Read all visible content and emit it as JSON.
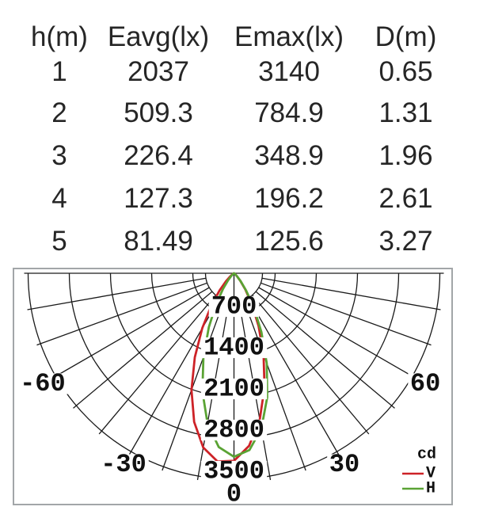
{
  "table": {
    "headers": [
      "h(m)",
      "Eavg(lx)",
      "Emax(lx)",
      "D(m)"
    ],
    "rows": [
      [
        "1",
        "2037",
        "3140",
        "0.65"
      ],
      [
        "2",
        "509.3",
        "784.9",
        "1.31"
      ],
      [
        "3",
        "226.4",
        "348.9",
        "1.96"
      ],
      [
        "4",
        "127.3",
        "196.2",
        "2.61"
      ],
      [
        "5",
        "81.49",
        "125.6",
        "3.27"
      ]
    ]
  },
  "chart_data": {
    "type": "polar",
    "title": "",
    "unit": "cd",
    "r_max": 3500,
    "radial_ticks": [
      "700",
      "1400",
      "2100",
      "2800",
      "3500"
    ],
    "radial_tick_values": [
      700,
      1400,
      2100,
      2800,
      3500
    ],
    "angle_ticks": [
      "-60",
      "-30",
      "0",
      "30",
      "60"
    ],
    "angle_tick_values": [
      -60,
      -30,
      0,
      30,
      60
    ],
    "grid": {
      "angle_step_deg": 10,
      "angle_range_deg": [
        -90,
        90
      ],
      "on": true
    },
    "legend": {
      "unit_label": "cd",
      "position": "bottom-right"
    },
    "series": [
      {
        "name": "V",
        "color": "#cd2227",
        "peak_cd": 3211,
        "points": [
          [
            -90,
            0
          ],
          [
            -85,
            0
          ],
          [
            -80,
            0
          ],
          [
            -75,
            0
          ],
          [
            -70,
            0
          ],
          [
            -65,
            3
          ],
          [
            -60,
            10
          ],
          [
            -55,
            32
          ],
          [
            -50,
            85
          ],
          [
            -45,
            192
          ],
          [
            -40,
            381
          ],
          [
            -35,
            674
          ],
          [
            -30,
            1079
          ],
          [
            -25,
            1576
          ],
          [
            -20,
            2112
          ],
          [
            -15,
            2616
          ],
          [
            -10,
            3008
          ],
          [
            -5,
            3211
          ],
          [
            0,
            3188
          ],
          [
            5,
            2944
          ],
          [
            10,
            2524
          ],
          [
            15,
            2007
          ],
          [
            20,
            1470
          ],
          [
            25,
            989
          ],
          [
            30,
            606
          ],
          [
            35,
            337
          ],
          [
            40,
            165
          ],
          [
            45,
            71
          ],
          [
            50,
            26
          ],
          [
            55,
            8
          ],
          [
            60,
            2
          ],
          [
            65,
            0
          ],
          [
            70,
            0
          ],
          [
            75,
            0
          ],
          [
            80,
            0
          ],
          [
            85,
            0
          ],
          [
            90,
            0
          ]
        ]
      },
      {
        "name": "H",
        "color": "#5aa334",
        "peak_cd": 3119,
        "points": [
          [
            -90,
            0
          ],
          [
            -85,
            0
          ],
          [
            -80,
            0
          ],
          [
            -75,
            0
          ],
          [
            -70,
            0
          ],
          [
            -65,
            0
          ],
          [
            -60,
            1
          ],
          [
            -55,
            6
          ],
          [
            -50,
            21
          ],
          [
            -45,
            63
          ],
          [
            -40,
            153
          ],
          [
            -35,
            324
          ],
          [
            -30,
            606
          ],
          [
            -25,
            1011
          ],
          [
            -20,
            1519
          ],
          [
            -15,
            2075
          ],
          [
            -10,
            2591
          ],
          [
            -5,
            2966
          ],
          [
            0,
            3119
          ],
          [
            5,
            3016
          ],
          [
            10,
            2680
          ],
          [
            15,
            2184
          ],
          [
            20,
            1629
          ],
          [
            25,
            1104
          ],
          [
            30,
            678
          ],
          [
            35,
            365
          ],
          [
            40,
            180
          ],
          [
            45,
            76
          ],
          [
            50,
            27
          ],
          [
            55,
            8
          ],
          [
            60,
            2
          ],
          [
            65,
            0
          ],
          [
            70,
            0
          ],
          [
            75,
            0
          ],
          [
            80,
            0
          ],
          [
            85,
            0
          ],
          [
            90,
            0
          ]
        ]
      }
    ]
  }
}
